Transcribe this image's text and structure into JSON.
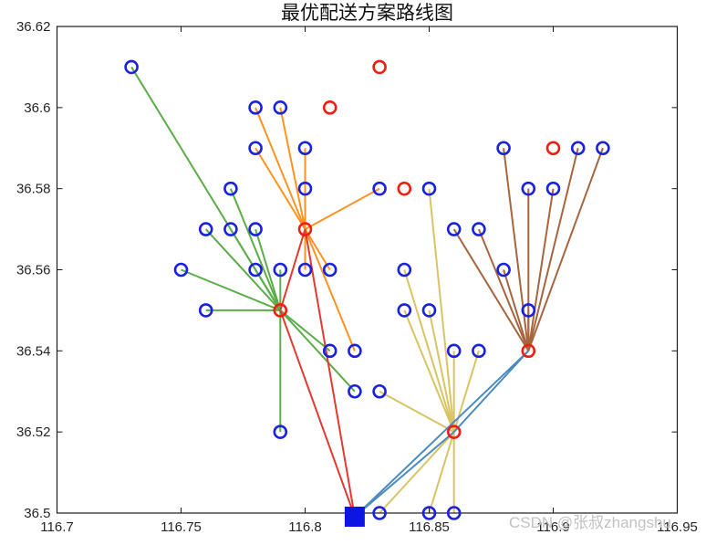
{
  "watermark": {
    "text": "CSDN @张叔zhangshu",
    "color": "#C2C2C2"
  },
  "chart_data": {
    "type": "scatter",
    "title": "最优配送方案路线图",
    "xlabel": "",
    "ylabel": "",
    "legend": null,
    "axes": {
      "xlim": [
        116.7,
        116.95
      ],
      "ylim": [
        36.5,
        36.62
      ],
      "xticks": [
        116.7,
        116.75,
        116.8,
        116.85,
        116.9,
        116.95
      ],
      "xtick_labels": [
        "116.7",
        "116.75",
        "116.8",
        "116.85",
        "116.9",
        "116.95"
      ],
      "yticks": [
        36.5,
        36.52,
        36.54,
        36.56,
        36.58,
        36.6,
        36.62
      ],
      "ytick_labels": [
        "36.5",
        "36.52",
        "36.54",
        "36.56",
        "36.58",
        "36.6",
        "36.62"
      ],
      "grid": false,
      "box": true,
      "tick_dir": "in"
    },
    "colors": {
      "customer_marker": "#1A22DE",
      "center_marker": "#F01D10",
      "depot_marker": "#0D15E2",
      "axis": "#1A1A1A",
      "clusters": {
        "c1": "#5BAD49",
        "c2": "#FF9221",
        "c3": "#D8C463",
        "c4": "#A6653F"
      },
      "routes": {
        "r1": "#E23A30",
        "r2": "#4C8BC0"
      }
    },
    "depot": {
      "x": 116.82,
      "y": 36.5
    },
    "centers": {
      "c1": {
        "x": 116.79,
        "y": 36.55
      },
      "c2": {
        "x": 116.8,
        "y": 36.57
      },
      "c3": {
        "x": 116.86,
        "y": 36.52
      },
      "c4": {
        "x": 116.89,
        "y": 36.54
      }
    },
    "unassigned_centers": [
      {
        "x": 116.83,
        "y": 36.61
      },
      {
        "x": 116.81,
        "y": 36.6
      },
      {
        "x": 116.9,
        "y": 36.59
      },
      {
        "x": 116.84,
        "y": 36.58
      }
    ],
    "customers": [
      {
        "x": 116.73,
        "y": 36.61,
        "cluster": "c1"
      },
      {
        "x": 116.77,
        "y": 36.58,
        "cluster": "c1"
      },
      {
        "x": 116.76,
        "y": 36.57,
        "cluster": "c1"
      },
      {
        "x": 116.77,
        "y": 36.57,
        "cluster": "c1"
      },
      {
        "x": 116.78,
        "y": 36.57,
        "cluster": "c1"
      },
      {
        "x": 116.75,
        "y": 36.56,
        "cluster": "c1"
      },
      {
        "x": 116.78,
        "y": 36.56,
        "cluster": "c1"
      },
      {
        "x": 116.79,
        "y": 36.56,
        "cluster": "c1"
      },
      {
        "x": 116.76,
        "y": 36.55,
        "cluster": "c1"
      },
      {
        "x": 116.81,
        "y": 36.54,
        "cluster": "c1"
      },
      {
        "x": 116.82,
        "y": 36.53,
        "cluster": "c1"
      },
      {
        "x": 116.79,
        "y": 36.52,
        "cluster": "c1"
      },
      {
        "x": 116.78,
        "y": 36.6,
        "cluster": "c2"
      },
      {
        "x": 116.79,
        "y": 36.6,
        "cluster": "c2"
      },
      {
        "x": 116.78,
        "y": 36.59,
        "cluster": "c2"
      },
      {
        "x": 116.8,
        "y": 36.59,
        "cluster": "c2"
      },
      {
        "x": 116.8,
        "y": 36.58,
        "cluster": "c2"
      },
      {
        "x": 116.83,
        "y": 36.58,
        "cluster": "c2"
      },
      {
        "x": 116.8,
        "y": 36.56,
        "cluster": "c2"
      },
      {
        "x": 116.81,
        "y": 36.56,
        "cluster": "c2"
      },
      {
        "x": 116.82,
        "y": 36.54,
        "cluster": "c2"
      },
      {
        "x": 116.85,
        "y": 36.58,
        "cluster": "c3"
      },
      {
        "x": 116.84,
        "y": 36.56,
        "cluster": "c3"
      },
      {
        "x": 116.84,
        "y": 36.55,
        "cluster": "c3"
      },
      {
        "x": 116.85,
        "y": 36.55,
        "cluster": "c3"
      },
      {
        "x": 116.86,
        "y": 36.54,
        "cluster": "c3"
      },
      {
        "x": 116.87,
        "y": 36.54,
        "cluster": "c3"
      },
      {
        "x": 116.83,
        "y": 36.53,
        "cluster": "c3"
      },
      {
        "x": 116.83,
        "y": 36.5,
        "cluster": "c3"
      },
      {
        "x": 116.85,
        "y": 36.5,
        "cluster": "c3"
      },
      {
        "x": 116.86,
        "y": 36.5,
        "cluster": "c3"
      },
      {
        "x": 116.88,
        "y": 36.59,
        "cluster": "c4"
      },
      {
        "x": 116.91,
        "y": 36.59,
        "cluster": "c4"
      },
      {
        "x": 116.92,
        "y": 36.59,
        "cluster": "c4"
      },
      {
        "x": 116.89,
        "y": 36.58,
        "cluster": "c4"
      },
      {
        "x": 116.9,
        "y": 36.58,
        "cluster": "c4"
      },
      {
        "x": 116.86,
        "y": 36.57,
        "cluster": "c4"
      },
      {
        "x": 116.87,
        "y": 36.57,
        "cluster": "c4"
      },
      {
        "x": 116.88,
        "y": 36.56,
        "cluster": "c4"
      },
      {
        "x": 116.89,
        "y": 36.55,
        "cluster": "c4"
      }
    ],
    "routes": [
      {
        "name": "route-red",
        "color": "r1",
        "stops": [
          "depot",
          "c1",
          "c2",
          "depot"
        ]
      },
      {
        "name": "route-blue",
        "color": "r2",
        "stops": [
          "depot",
          "c3",
          "c4",
          "depot"
        ]
      }
    ]
  }
}
